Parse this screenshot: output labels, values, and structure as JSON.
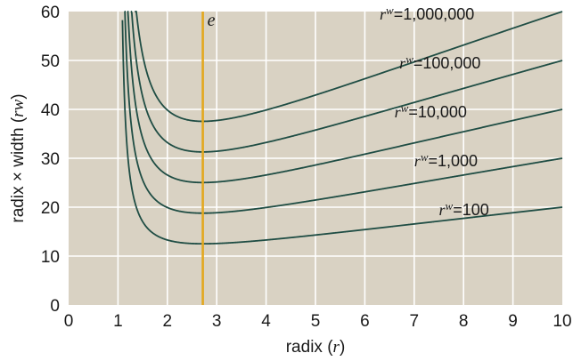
{
  "chart_data": {
    "type": "line",
    "xlabel": {
      "prefix": "radix (",
      "var": "r",
      "suffix": ")"
    },
    "ylabel": {
      "prefix": "radix × width (",
      "var": "rw",
      "suffix": ")"
    },
    "xlim": [
      0,
      10
    ],
    "ylim": [
      0,
      60
    ],
    "x_ticks": [
      "0",
      "1",
      "2",
      "3",
      "4",
      "5",
      "6",
      "7",
      "8",
      "9",
      "10"
    ],
    "y_ticks": [
      "0",
      "10",
      "20",
      "30",
      "40",
      "50",
      "60"
    ],
    "grid": true,
    "vline": {
      "x": 2.718,
      "label": "e",
      "color": "#e3a81f"
    },
    "plot_background": "#d9d2c3",
    "line_color": "#1f4d44",
    "series": [
      {
        "label_base": "r",
        "label_sup": "w",
        "label_value": "=100",
        "N": 100,
        "label_at": [
          7.5,
          22.0
        ]
      },
      {
        "label_base": "r",
        "label_sup": "w",
        "label_value": "=1,000",
        "N": 1000,
        "label_at": [
          7.0,
          32.0
        ]
      },
      {
        "label_base": "r",
        "label_sup": "w",
        "label_value": "=10,000",
        "N": 10000,
        "label_at": [
          6.6,
          42.0
        ]
      },
      {
        "label_base": "r",
        "label_sup": "w",
        "label_value": "=100,000",
        "N": 100000,
        "label_at": [
          6.7,
          52.0
        ]
      },
      {
        "label_base": "r",
        "label_sup": "w",
        "label_value": "=1,000,000",
        "N": 1000000,
        "label_at": [
          6.3,
          62.0
        ]
      }
    ]
  }
}
